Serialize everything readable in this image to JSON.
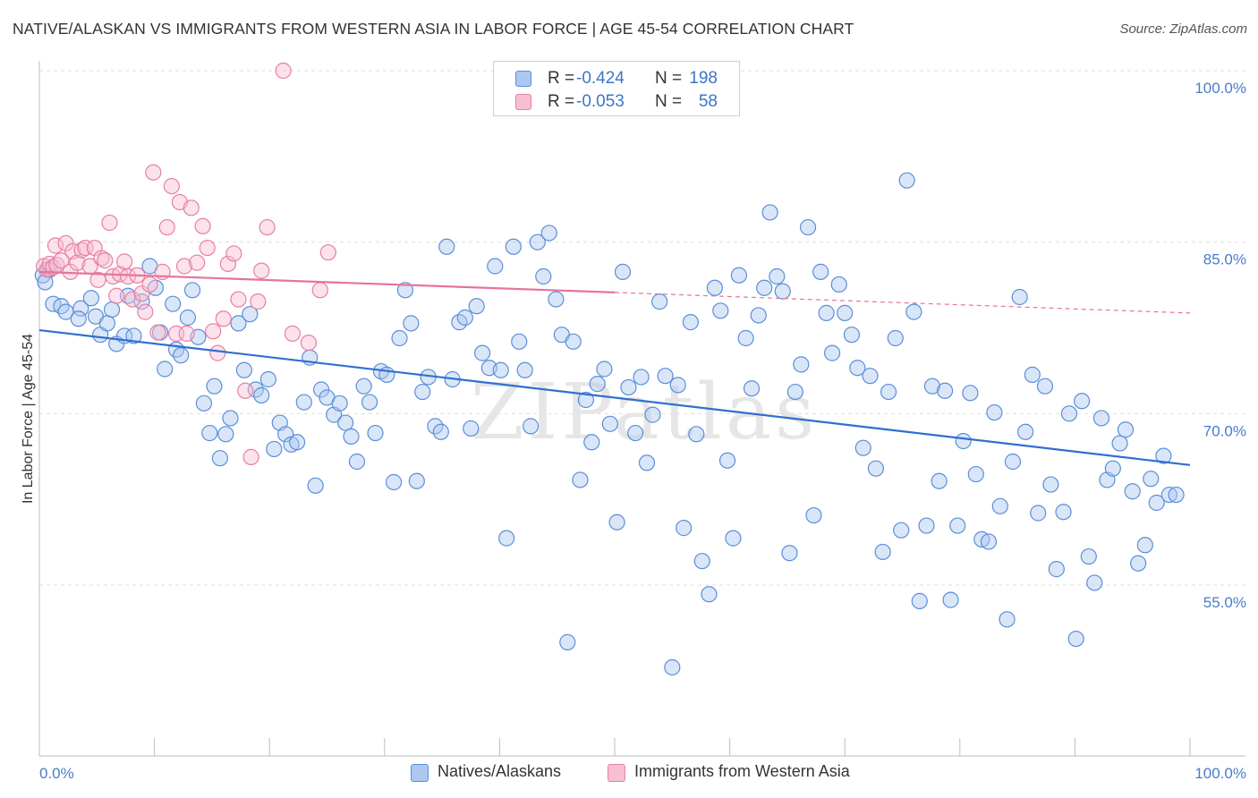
{
  "title": "NATIVE/ALASKAN VS IMMIGRANTS FROM WESTERN ASIA IN LABOR FORCE | AGE 45-54 CORRELATION CHART",
  "source": "Source: ZipAtlas.com",
  "watermark": "ZIPatlas",
  "colors": {
    "blue_fill": "#aac8f0",
    "blue_stroke": "#5b8ed8",
    "blue_line": "#2f6fd0",
    "pink_fill": "#f7bfd3",
    "pink_stroke": "#e87fa3",
    "pink_line": "#e8739c",
    "axis_text": "#4a7cc9",
    "grid": "#dddddd"
  },
  "legend": {
    "items": [
      {
        "r_label": "R =",
        "r_value": "-0.424",
        "n_label": "N =",
        "n_value": "198"
      },
      {
        "r_label": "R =",
        "r_value": "-0.053",
        "n_label": "N =",
        "n_value": "58"
      }
    ]
  },
  "bottom_legend": {
    "natives": "Natives/Alaskans",
    "immigrants": "Immigrants from Western Asia"
  },
  "chart_data": {
    "type": "scatter",
    "title": "NATIVE/ALASKAN VS IMMIGRANTS FROM WESTERN ASIA IN LABOR FORCE | AGE 45-54 CORRELATION CHART",
    "xlabel": "",
    "ylabel": "In Labor Force | Age 45-54",
    "xlim": [
      0,
      100
    ],
    "ylim": [
      40,
      102
    ],
    "x_tick_labels": [
      "0.0%",
      "100.0%"
    ],
    "y_ticks": [
      55,
      70,
      85,
      100
    ],
    "y_tick_labels": [
      "55.0%",
      "70.0%",
      "85.0%",
      "100.0%"
    ],
    "grid": "horizontal dashed",
    "legend_position": "top-center",
    "series": [
      {
        "name": "Natives/Alaskans",
        "color": "#5b8ed8",
        "trend": {
          "x": [
            0,
            100
          ],
          "y": [
            77.3,
            65.5
          ],
          "style": "solid"
        },
        "points": [
          [
            0.3,
            82.1
          ],
          [
            0.5,
            81.5
          ],
          [
            0.9,
            82.6
          ],
          [
            1.2,
            79.6
          ],
          [
            1.9,
            79.4
          ],
          [
            2.3,
            78.9
          ],
          [
            3.6,
            79.2
          ],
          [
            3.4,
            78.3
          ],
          [
            4.5,
            80.1
          ],
          [
            4.9,
            78.5
          ],
          [
            5.3,
            76.9
          ],
          [
            5.9,
            77.9
          ],
          [
            6.3,
            79.1
          ],
          [
            6.7,
            76.1
          ],
          [
            7.4,
            76.8
          ],
          [
            7.7,
            80.3
          ],
          [
            8.2,
            76.8
          ],
          [
            8.9,
            79.8
          ],
          [
            9.6,
            82.9
          ],
          [
            10.1,
            81.0
          ],
          [
            10.5,
            77.1
          ],
          [
            10.9,
            73.9
          ],
          [
            11.6,
            79.6
          ],
          [
            11.9,
            75.6
          ],
          [
            12.3,
            75.1
          ],
          [
            12.9,
            78.4
          ],
          [
            13.3,
            80.8
          ],
          [
            13.8,
            76.7
          ],
          [
            14.3,
            70.9
          ],
          [
            14.8,
            68.3
          ],
          [
            15.2,
            72.4
          ],
          [
            15.7,
            66.1
          ],
          [
            16.2,
            68.2
          ],
          [
            16.6,
            69.6
          ],
          [
            17.3,
            77.9
          ],
          [
            17.8,
            73.8
          ],
          [
            18.3,
            78.7
          ],
          [
            18.8,
            72.1
          ],
          [
            19.3,
            71.6
          ],
          [
            19.9,
            73.0
          ],
          [
            20.4,
            66.9
          ],
          [
            20.9,
            69.2
          ],
          [
            21.4,
            68.2
          ],
          [
            21.9,
            67.3
          ],
          [
            22.4,
            67.5
          ],
          [
            23.0,
            71.0
          ],
          [
            23.5,
            74.9
          ],
          [
            24.0,
            63.7
          ],
          [
            24.5,
            72.1
          ],
          [
            25.0,
            71.4
          ],
          [
            25.6,
            69.9
          ],
          [
            26.1,
            70.9
          ],
          [
            26.6,
            69.2
          ],
          [
            27.1,
            68.0
          ],
          [
            27.6,
            65.8
          ],
          [
            28.2,
            72.4
          ],
          [
            28.7,
            71.0
          ],
          [
            29.2,
            68.3
          ],
          [
            29.7,
            73.7
          ],
          [
            30.2,
            73.4
          ],
          [
            30.8,
            64.0
          ],
          [
            31.3,
            76.6
          ],
          [
            31.8,
            80.8
          ],
          [
            32.3,
            77.9
          ],
          [
            32.8,
            64.1
          ],
          [
            33.3,
            71.9
          ],
          [
            33.8,
            73.2
          ],
          [
            34.4,
            68.9
          ],
          [
            34.9,
            68.4
          ],
          [
            35.4,
            84.6
          ],
          [
            35.9,
            73.0
          ],
          [
            36.5,
            78.0
          ],
          [
            37.0,
            78.4
          ],
          [
            37.5,
            68.7
          ],
          [
            38.0,
            79.4
          ],
          [
            38.5,
            75.3
          ],
          [
            39.1,
            74.0
          ],
          [
            39.6,
            82.9
          ],
          [
            40.1,
            73.8
          ],
          [
            40.6,
            59.1
          ],
          [
            41.2,
            84.6
          ],
          [
            41.7,
            76.3
          ],
          [
            42.2,
            73.8
          ],
          [
            42.7,
            68.9
          ],
          [
            43.3,
            85.0
          ],
          [
            43.8,
            82.0
          ],
          [
            44.3,
            85.8
          ],
          [
            44.9,
            80.0
          ],
          [
            45.4,
            76.9
          ],
          [
            45.9,
            50.0
          ],
          [
            46.4,
            76.3
          ],
          [
            47.0,
            64.2
          ],
          [
            47.5,
            71.2
          ],
          [
            48.0,
            67.5
          ],
          [
            48.5,
            72.6
          ],
          [
            49.1,
            73.9
          ],
          [
            49.6,
            69.1
          ],
          [
            50.2,
            60.5
          ],
          [
            50.7,
            82.4
          ],
          [
            51.2,
            72.3
          ],
          [
            51.8,
            68.3
          ],
          [
            52.3,
            73.2
          ],
          [
            52.8,
            65.7
          ],
          [
            53.3,
            69.9
          ],
          [
            53.9,
            79.8
          ],
          [
            54.4,
            73.3
          ],
          [
            55.0,
            47.8
          ],
          [
            55.5,
            72.5
          ],
          [
            56.0,
            60.0
          ],
          [
            56.6,
            78.0
          ],
          [
            57.1,
            68.2
          ],
          [
            57.6,
            57.1
          ],
          [
            58.2,
            54.2
          ],
          [
            58.7,
            81.0
          ],
          [
            59.2,
            79.0
          ],
          [
            59.8,
            65.9
          ],
          [
            60.3,
            59.1
          ],
          [
            60.8,
            82.1
          ],
          [
            61.4,
            76.6
          ],
          [
            61.9,
            72.2
          ],
          [
            62.5,
            78.6
          ],
          [
            63.0,
            81.0
          ],
          [
            63.5,
            87.6
          ],
          [
            64.1,
            82.0
          ],
          [
            64.6,
            80.7
          ],
          [
            65.2,
            57.8
          ],
          [
            65.7,
            71.9
          ],
          [
            66.2,
            74.3
          ],
          [
            66.8,
            86.3
          ],
          [
            67.3,
            61.1
          ],
          [
            67.9,
            82.4
          ],
          [
            68.4,
            78.8
          ],
          [
            68.9,
            75.3
          ],
          [
            69.5,
            81.3
          ],
          [
            70.0,
            78.8
          ],
          [
            70.6,
            76.9
          ],
          [
            71.1,
            74.0
          ],
          [
            71.6,
            67.0
          ],
          [
            72.2,
            73.3
          ],
          [
            72.7,
            65.2
          ],
          [
            73.3,
            57.9
          ],
          [
            73.8,
            71.9
          ],
          [
            74.4,
            76.6
          ],
          [
            74.9,
            59.8
          ],
          [
            75.4,
            90.4
          ],
          [
            76.0,
            78.9
          ],
          [
            76.5,
            53.6
          ],
          [
            77.1,
            60.2
          ],
          [
            77.6,
            72.4
          ],
          [
            78.2,
            64.1
          ],
          [
            78.7,
            72.0
          ],
          [
            79.2,
            53.7
          ],
          [
            79.8,
            60.2
          ],
          [
            80.3,
            67.6
          ],
          [
            80.9,
            71.8
          ],
          [
            81.4,
            64.7
          ],
          [
            81.9,
            59.0
          ],
          [
            82.5,
            58.8
          ],
          [
            83.0,
            70.1
          ],
          [
            83.5,
            61.9
          ],
          [
            84.1,
            52.0
          ],
          [
            84.6,
            65.8
          ],
          [
            85.2,
            80.2
          ],
          [
            85.7,
            68.4
          ],
          [
            86.3,
            73.4
          ],
          [
            86.8,
            61.3
          ],
          [
            87.4,
            72.4
          ],
          [
            87.9,
            63.8
          ],
          [
            88.4,
            56.4
          ],
          [
            89.0,
            61.4
          ],
          [
            89.5,
            70.0
          ],
          [
            90.1,
            50.3
          ],
          [
            90.6,
            71.1
          ],
          [
            91.2,
            57.5
          ],
          [
            91.7,
            55.2
          ],
          [
            92.3,
            69.6
          ],
          [
            92.8,
            64.2
          ],
          [
            93.3,
            65.2
          ],
          [
            93.9,
            67.4
          ],
          [
            94.4,
            68.6
          ],
          [
            95.0,
            63.2
          ],
          [
            95.5,
            56.9
          ],
          [
            96.1,
            58.5
          ],
          [
            96.6,
            64.3
          ],
          [
            97.1,
            62.2
          ],
          [
            97.7,
            66.3
          ],
          [
            98.2,
            62.9
          ],
          [
            98.8,
            62.9
          ]
        ]
      },
      {
        "name": "Immigrants from Western Asia",
        "color": "#e87fa3",
        "trend": {
          "x": [
            0,
            50
          ],
          "y": [
            82.4,
            80.6
          ],
          "style": "solid",
          "extension": {
            "x": [
              50,
              100
            ],
            "y": [
              80.6,
              78.8
            ],
            "style": "dashed"
          }
        },
        "points": [
          [
            0.4,
            82.9
          ],
          [
            0.7,
            82.6
          ],
          [
            0.9,
            83.1
          ],
          [
            1.2,
            82.8
          ],
          [
            1.5,
            83.0
          ],
          [
            1.4,
            84.7
          ],
          [
            1.9,
            83.4
          ],
          [
            2.3,
            84.9
          ],
          [
            2.7,
            82.4
          ],
          [
            2.9,
            84.2
          ],
          [
            3.3,
            83.2
          ],
          [
            3.7,
            84.3
          ],
          [
            4.0,
            84.5
          ],
          [
            4.4,
            82.9
          ],
          [
            4.8,
            84.5
          ],
          [
            5.1,
            81.7
          ],
          [
            5.4,
            83.6
          ],
          [
            5.7,
            83.4
          ],
          [
            6.1,
            86.7
          ],
          [
            6.4,
            82.0
          ],
          [
            6.7,
            80.3
          ],
          [
            7.0,
            82.2
          ],
          [
            7.4,
            83.3
          ],
          [
            7.7,
            82.0
          ],
          [
            8.1,
            80.0
          ],
          [
            8.5,
            82.1
          ],
          [
            8.9,
            80.5
          ],
          [
            9.2,
            78.9
          ],
          [
            9.6,
            81.3
          ],
          [
            9.9,
            91.1
          ],
          [
            10.3,
            77.1
          ],
          [
            10.7,
            82.4
          ],
          [
            11.1,
            86.3
          ],
          [
            11.5,
            89.9
          ],
          [
            11.9,
            77.0
          ],
          [
            12.2,
            88.5
          ],
          [
            12.6,
            82.9
          ],
          [
            12.8,
            77.0
          ],
          [
            13.2,
            88.0
          ],
          [
            13.7,
            83.2
          ],
          [
            14.2,
            86.4
          ],
          [
            14.6,
            84.5
          ],
          [
            15.1,
            77.2
          ],
          [
            15.5,
            75.3
          ],
          [
            16.0,
            78.3
          ],
          [
            16.4,
            83.1
          ],
          [
            16.9,
            84.0
          ],
          [
            17.3,
            80.0
          ],
          [
            17.9,
            72.0
          ],
          [
            18.4,
            66.2
          ],
          [
            19.0,
            79.8
          ],
          [
            19.3,
            82.5
          ],
          [
            19.8,
            86.3
          ],
          [
            21.2,
            100.0
          ],
          [
            22.0,
            77.0
          ],
          [
            23.4,
            76.2
          ],
          [
            24.4,
            80.8
          ],
          [
            25.1,
            84.1
          ]
        ]
      }
    ]
  }
}
